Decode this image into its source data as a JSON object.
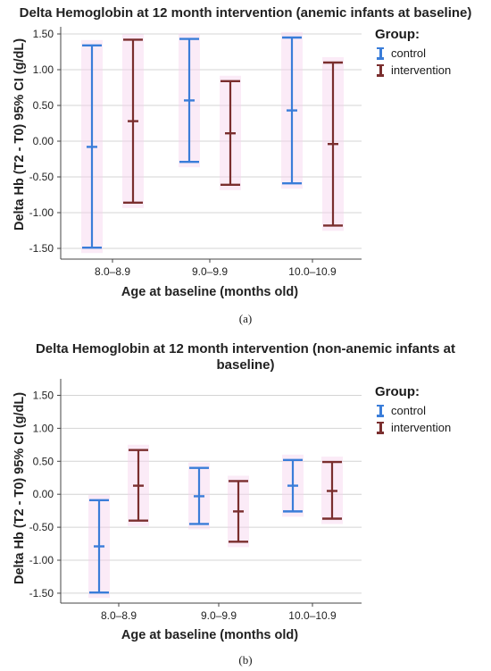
{
  "chart_data": [
    {
      "type": "errorbar",
      "title": "Delta Hemoglobin at 12 month intervention (anemic infants at baseline)",
      "xlabel": "Age at baseline (months old)",
      "ylabel": "Delta Hb (T2 - T0) 95% CI (g/dL)",
      "caption": "(a)",
      "ylim": [
        -1.65,
        1.6
      ],
      "yticks": [
        "1.50",
        "1.00",
        "0.50",
        "0.00",
        "-0.50",
        "-1.00",
        "-1.50"
      ],
      "ytick_values": [
        1.5,
        1.0,
        0.5,
        0.0,
        -0.5,
        -1.0,
        -1.5
      ],
      "grid": true,
      "legend": {
        "title": "Group:",
        "position": "top-right"
      },
      "categories": [
        "8.0–8.9",
        "9.0–9.9",
        "10.0–10.9"
      ],
      "series": [
        {
          "name": "control",
          "color": "#3a7dd9",
          "mean": [
            -0.08,
            0.57,
            0.43
          ],
          "lower": [
            -1.49,
            -0.29,
            -0.59
          ],
          "upper": [
            1.34,
            1.43,
            1.45
          ]
        },
        {
          "name": "intervention",
          "color": "#7a2e2e",
          "mean": [
            0.28,
            0.11,
            -0.04
          ],
          "lower": [
            -0.86,
            -0.61,
            -1.18
          ],
          "upper": [
            1.42,
            0.84,
            1.1
          ]
        }
      ]
    },
    {
      "type": "errorbar",
      "title": "Delta Hemoglobin at 12 month intervention (non-anemic infants at baseline)",
      "title_line1": "Delta Hemoglobin at 12 month intervention (non-anemic infants at",
      "title_line2": "baseline)",
      "xlabel": "Age at baseline (months old)",
      "ylabel": "Delta Hb (T2 - T0) 95% CI (g/dL)",
      "caption": "(b)",
      "ylim": [
        -1.65,
        1.75
      ],
      "yticks": [
        "1.50",
        "1.00",
        "0.50",
        "0.00",
        "-0.50",
        "-1.00",
        "-1.50"
      ],
      "ytick_values": [
        1.5,
        1.0,
        0.5,
        0.0,
        -0.5,
        -1.0,
        -1.5
      ],
      "grid": true,
      "legend": {
        "title": "Group:",
        "position": "top-right"
      },
      "categories": [
        "8.0–8.9",
        "9.0–9.9",
        "10.0–10.9"
      ],
      "series": [
        {
          "name": "control",
          "color": "#3a7dd9",
          "mean": [
            -0.79,
            -0.03,
            0.13
          ],
          "lower": [
            -1.49,
            -0.45,
            -0.26
          ],
          "upper": [
            -0.09,
            0.4,
            0.52
          ]
        },
        {
          "name": "intervention",
          "color": "#7a2e2e",
          "mean": [
            0.13,
            -0.26,
            0.05
          ],
          "lower": [
            -0.4,
            -0.72,
            -0.37
          ],
          "upper": [
            0.67,
            0.2,
            0.49
          ]
        }
      ]
    }
  ]
}
